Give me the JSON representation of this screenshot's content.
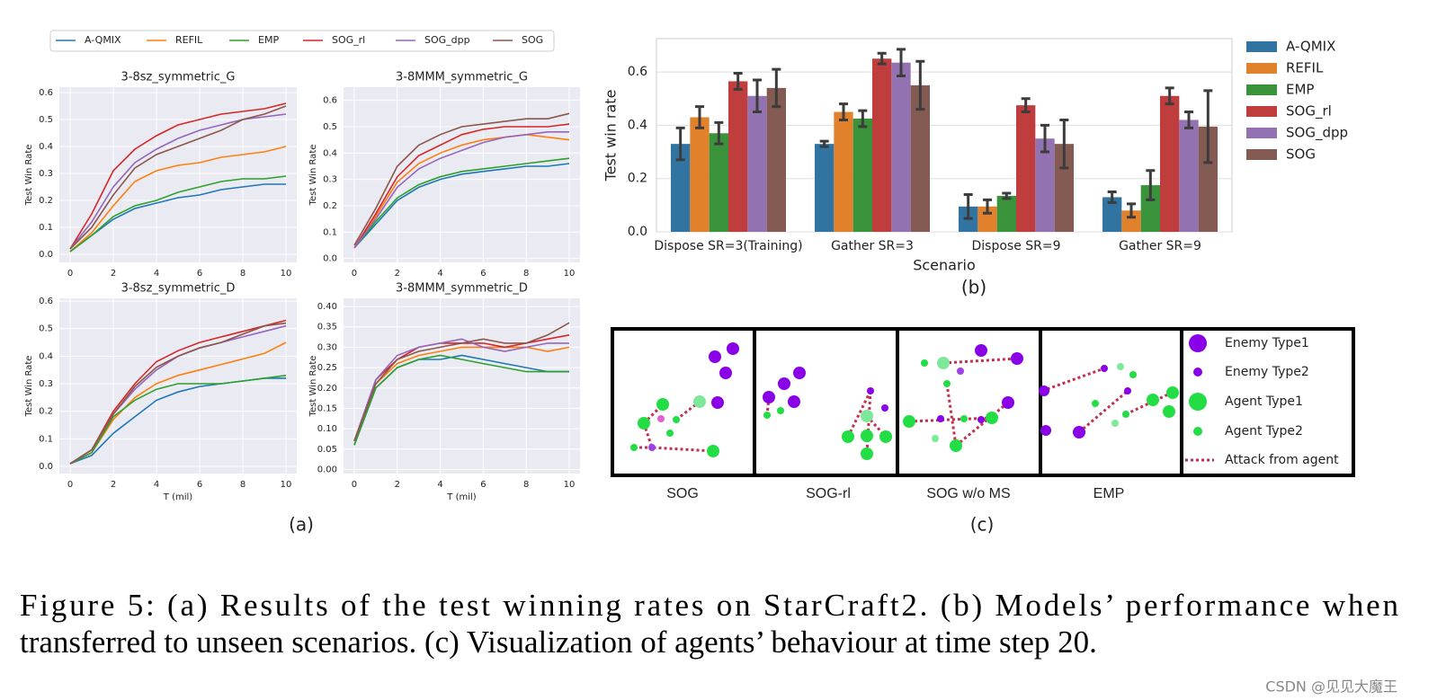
{
  "chart_data": [
    {
      "type": "line",
      "title": "3-8sz_symmetric_G",
      "ylabel": "Test Win Rate",
      "x": [
        0,
        1,
        2,
        3,
        4,
        5,
        6,
        7,
        8,
        9,
        10
      ],
      "xlim": [
        -0.5,
        10.5
      ],
      "ylim": [
        -0.03,
        0.62
      ],
      "xticks": [
        0,
        2,
        4,
        6,
        8,
        10
      ],
      "yticks": [
        {
          "value": 0,
          "label": "0.0"
        },
        0.1,
        0.2,
        0.3,
        0.4,
        0.5,
        0.6
      ],
      "grid": true,
      "series": [
        {
          "name": "A-QMIX",
          "color": "#1f77b4",
          "values": [
            0.01,
            0.07,
            0.13,
            0.17,
            0.19,
            0.21,
            0.22,
            0.24,
            0.25,
            0.26,
            0.26
          ]
        },
        {
          "name": "REFIL",
          "color": "#ff7f0e",
          "values": [
            0.01,
            0.08,
            0.18,
            0.27,
            0.31,
            0.33,
            0.34,
            0.36,
            0.37,
            0.38,
            0.4
          ]
        },
        {
          "name": "EMP",
          "color": "#2ca02c",
          "values": [
            0.01,
            0.07,
            0.14,
            0.18,
            0.2,
            0.23,
            0.25,
            0.27,
            0.28,
            0.28,
            0.29
          ]
        },
        {
          "name": "SOG_rl",
          "color": "#d62728",
          "values": [
            0.02,
            0.15,
            0.31,
            0.39,
            0.44,
            0.48,
            0.5,
            0.52,
            0.53,
            0.54,
            0.56
          ]
        },
        {
          "name": "SOG_dpp",
          "color": "#9467bd",
          "values": [
            0.02,
            0.12,
            0.25,
            0.34,
            0.39,
            0.43,
            0.46,
            0.48,
            0.5,
            0.51,
            0.52
          ]
        },
        {
          "name": "SOG",
          "color": "#8c564b",
          "values": [
            0.02,
            0.1,
            0.22,
            0.32,
            0.37,
            0.4,
            0.43,
            0.46,
            0.5,
            0.52,
            0.55
          ]
        }
      ]
    },
    {
      "type": "line",
      "title": "3-8MMM_symmetric_G",
      "ylabel": "Test Win Rate",
      "x": [
        0,
        1,
        2,
        3,
        4,
        5,
        6,
        7,
        8,
        9,
        10
      ],
      "xlim": [
        -0.5,
        10.5
      ],
      "ylim": [
        -0.015,
        0.65
      ],
      "xticks": [
        0,
        2,
        4,
        6,
        8,
        10
      ],
      "yticks": [
        {
          "value": 0,
          "label": "0.0"
        },
        0.1,
        0.2,
        0.3,
        0.4,
        0.5,
        0.6
      ],
      "grid": true,
      "series": [
        {
          "name": "A-QMIX",
          "color": "#1f77b4",
          "values": [
            0.04,
            0.13,
            0.22,
            0.27,
            0.3,
            0.32,
            0.33,
            0.34,
            0.35,
            0.35,
            0.36
          ]
        },
        {
          "name": "REFIL",
          "color": "#ff7f0e",
          "values": [
            0.04,
            0.16,
            0.29,
            0.36,
            0.4,
            0.43,
            0.45,
            0.46,
            0.47,
            0.46,
            0.45
          ]
        },
        {
          "name": "EMP",
          "color": "#2ca02c",
          "values": [
            0.04,
            0.14,
            0.23,
            0.28,
            0.31,
            0.33,
            0.34,
            0.35,
            0.36,
            0.37,
            0.38
          ]
        },
        {
          "name": "SOG_rl",
          "color": "#d62728",
          "values": [
            0.04,
            0.17,
            0.31,
            0.39,
            0.43,
            0.47,
            0.49,
            0.5,
            0.5,
            0.5,
            0.51
          ]
        },
        {
          "name": "SOG_dpp",
          "color": "#9467bd",
          "values": [
            0.04,
            0.15,
            0.27,
            0.34,
            0.38,
            0.41,
            0.44,
            0.46,
            0.47,
            0.48,
            0.48
          ]
        },
        {
          "name": "SOG",
          "color": "#8c564b",
          "values": [
            0.05,
            0.19,
            0.35,
            0.43,
            0.47,
            0.5,
            0.51,
            0.52,
            0.53,
            0.53,
            0.55
          ]
        }
      ]
    },
    {
      "type": "line",
      "title": "3-8sz_symmetric_D",
      "ylabel": "Test Win Rate",
      "xlabel": "T (mil)",
      "x": [
        0,
        1,
        2,
        3,
        4,
        5,
        6,
        7,
        8,
        9,
        10
      ],
      "xlim": [
        -0.5,
        10.5
      ],
      "ylim": [
        -0.026,
        0.61
      ],
      "xticks": [
        0,
        2,
        4,
        6,
        8,
        10
      ],
      "yticks": [
        {
          "value": 0,
          "label": "0.0"
        },
        0.1,
        0.2,
        0.3,
        0.4,
        0.5,
        0.6
      ],
      "grid": true,
      "series": [
        {
          "name": "A-QMIX",
          "color": "#1f77b4",
          "values": [
            0.01,
            0.04,
            0.12,
            0.18,
            0.24,
            0.27,
            0.29,
            0.3,
            0.31,
            0.32,
            0.32
          ]
        },
        {
          "name": "REFIL",
          "color": "#ff7f0e",
          "values": [
            0.01,
            0.05,
            0.17,
            0.25,
            0.3,
            0.33,
            0.35,
            0.37,
            0.39,
            0.41,
            0.45
          ]
        },
        {
          "name": "EMP",
          "color": "#2ca02c",
          "values": [
            0.01,
            0.05,
            0.18,
            0.24,
            0.28,
            0.3,
            0.3,
            0.3,
            0.31,
            0.32,
            0.33
          ]
        },
        {
          "name": "SOG_rl",
          "color": "#d62728",
          "values": [
            0.01,
            0.06,
            0.2,
            0.3,
            0.38,
            0.42,
            0.45,
            0.47,
            0.49,
            0.51,
            0.53
          ]
        },
        {
          "name": "SOG_dpp",
          "color": "#9467bd",
          "values": [
            0.01,
            0.06,
            0.19,
            0.28,
            0.35,
            0.4,
            0.43,
            0.45,
            0.47,
            0.49,
            0.51
          ]
        },
        {
          "name": "SOG",
          "color": "#8c564b",
          "values": [
            0.01,
            0.06,
            0.19,
            0.29,
            0.36,
            0.4,
            0.43,
            0.45,
            0.48,
            0.51,
            0.52
          ]
        }
      ]
    },
    {
      "type": "line",
      "title": "3-8MMM_symmetric_D",
      "ylabel": "Test Win Rate",
      "xlabel": "T (mil)",
      "x": [
        0,
        1,
        2,
        3,
        4,
        5,
        6,
        7,
        8,
        9,
        10
      ],
      "xlim": [
        -0.5,
        10.5
      ],
      "ylim": [
        -0.01,
        0.42
      ],
      "xticks": [
        0,
        2,
        4,
        6,
        8,
        10
      ],
      "yticks": [
        {
          "value": 0,
          "label": "0.00"
        },
        {
          "value": 0.05,
          "label": "0.05"
        },
        {
          "value": 0.1,
          "label": "0.10"
        },
        {
          "value": 0.15,
          "label": "0.15"
        },
        {
          "value": 0.2,
          "label": "0.20"
        },
        {
          "value": 0.25,
          "label": "0.25"
        },
        {
          "value": 0.3,
          "label": "0.30"
        },
        {
          "value": 0.35,
          "label": "0.35"
        },
        {
          "value": 0.4,
          "label": "0.40"
        }
      ],
      "grid": true,
      "series": [
        {
          "name": "A-QMIX",
          "color": "#1f77b4",
          "values": [
            0.06,
            0.2,
            0.25,
            0.27,
            0.27,
            0.28,
            0.27,
            0.26,
            0.25,
            0.24,
            0.24
          ]
        },
        {
          "name": "REFIL",
          "color": "#ff7f0e",
          "values": [
            0.07,
            0.21,
            0.26,
            0.28,
            0.29,
            0.3,
            0.3,
            0.3,
            0.3,
            0.29,
            0.3
          ]
        },
        {
          "name": "EMP",
          "color": "#2ca02c",
          "values": [
            0.06,
            0.2,
            0.25,
            0.27,
            0.28,
            0.27,
            0.26,
            0.25,
            0.24,
            0.24,
            0.24
          ]
        },
        {
          "name": "SOG_rl",
          "color": "#d62728",
          "values": [
            0.07,
            0.22,
            0.27,
            0.3,
            0.31,
            0.31,
            0.31,
            0.3,
            0.31,
            0.32,
            0.33
          ]
        },
        {
          "name": "SOG_dpp",
          "color": "#9467bd",
          "values": [
            0.07,
            0.22,
            0.28,
            0.3,
            0.31,
            0.32,
            0.3,
            0.29,
            0.3,
            0.31,
            0.31
          ]
        },
        {
          "name": "SOG",
          "color": "#8c564b",
          "values": [
            0.07,
            0.21,
            0.27,
            0.29,
            0.3,
            0.31,
            0.32,
            0.31,
            0.31,
            0.33,
            0.36
          ]
        }
      ]
    },
    {
      "type": "bar",
      "ylabel": "Test win rate",
      "xlabel": "Scenario",
      "categories": [
        "Dispose SR=3(Training)",
        "Gather SR=3",
        "Dispose SR=9",
        "Gather SR=9"
      ],
      "ylim": [
        0,
        0.725
      ],
      "yticks": [
        {
          "value": 0,
          "label": "0.0"
        },
        0.2,
        0.4,
        0.6
      ],
      "grid": true,
      "series": [
        {
          "name": "A-QMIX",
          "color": "#3274a1",
          "values": [
            0.33,
            0.33,
            0.095,
            0.13
          ],
          "errors": [
            0.06,
            0.01,
            0.045,
            0.02
          ]
        },
        {
          "name": "REFIL",
          "color": "#e1812c",
          "values": [
            0.43,
            0.45,
            0.095,
            0.08
          ],
          "errors": [
            0.04,
            0.03,
            0.025,
            0.025
          ]
        },
        {
          "name": "EMP",
          "color": "#3a923a",
          "values": [
            0.37,
            0.425,
            0.135,
            0.175
          ],
          "errors": [
            0.04,
            0.03,
            0.01,
            0.055
          ]
        },
        {
          "name": "SOG_rl",
          "color": "#c03d3e",
          "values": [
            0.565,
            0.65,
            0.475,
            0.51
          ],
          "errors": [
            0.03,
            0.02,
            0.025,
            0.03
          ]
        },
        {
          "name": "SOG_dpp",
          "color": "#9372b2",
          "values": [
            0.51,
            0.635,
            0.35,
            0.42
          ],
          "errors": [
            0.06,
            0.05,
            0.05,
            0.03
          ]
        },
        {
          "name": "SOG",
          "color": "#845b53",
          "values": [
            0.54,
            0.55,
            0.33,
            0.395
          ],
          "errors": [
            0.07,
            0.09,
            0.09,
            0.135
          ]
        }
      ]
    }
  ],
  "panel_labels": [
    "(a)",
    "(b)",
    "(c)"
  ],
  "visualization": {
    "captions": [
      "SOG",
      "SOG-rl",
      "SOG w/o MS",
      "EMP"
    ],
    "legend": [
      "Enemy Type1",
      "Enemy Type2",
      "Agent Type1",
      "Agent Type2",
      "Attack from agent"
    ]
  },
  "caption": {
    "lines": [
      "Figure 5:  (a) Results of the test winning rates on StarCraft2.  (b) Models’ performance when",
      "transferred to unseen scenarios. (c) Visualization of agents’ behaviour at time step 20."
    ]
  },
  "watermark": "CSDN @见见大魔王"
}
